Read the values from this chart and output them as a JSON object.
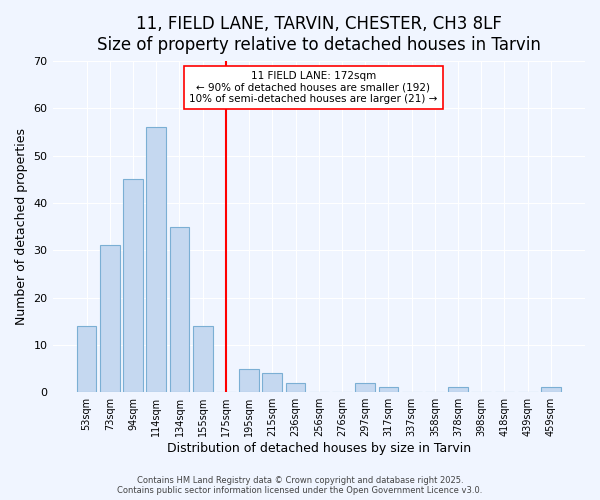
{
  "title": "11, FIELD LANE, TARVIN, CHESTER, CH3 8LF",
  "subtitle": "Size of property relative to detached houses in Tarvin",
  "xlabel": "Distribution of detached houses by size in Tarvin",
  "ylabel": "Number of detached properties",
  "categories": [
    "53sqm",
    "73sqm",
    "94sqm",
    "114sqm",
    "134sqm",
    "155sqm",
    "175sqm",
    "195sqm",
    "215sqm",
    "236sqm",
    "256sqm",
    "276sqm",
    "297sqm",
    "317sqm",
    "337sqm",
    "358sqm",
    "378sqm",
    "398sqm",
    "418sqm",
    "439sqm",
    "459sqm"
  ],
  "values": [
    14,
    31,
    45,
    56,
    35,
    14,
    0,
    5,
    4,
    2,
    0,
    0,
    2,
    1,
    0,
    0,
    1,
    0,
    0,
    0,
    1
  ],
  "bar_color": "#c5d8f0",
  "bar_edge_color": "#7bafd4",
  "vline_x": 6,
  "vline_color": "red",
  "annotation_title": "11 FIELD LANE: 172sqm",
  "annotation_line1": "← 90% of detached houses are smaller (192)",
  "annotation_line2": "10% of semi-detached houses are larger (21) →",
  "ylim": [
    0,
    70
  ],
  "yticks": [
    0,
    10,
    20,
    30,
    40,
    50,
    60,
    70
  ],
  "background_color": "#f0f5ff",
  "footer_line1": "Contains HM Land Registry data © Crown copyright and database right 2025.",
  "footer_line2": "Contains public sector information licensed under the Open Government Licence v3.0.",
  "title_fontsize": 12,
  "xlabel_fontsize": 9,
  "ylabel_fontsize": 9
}
